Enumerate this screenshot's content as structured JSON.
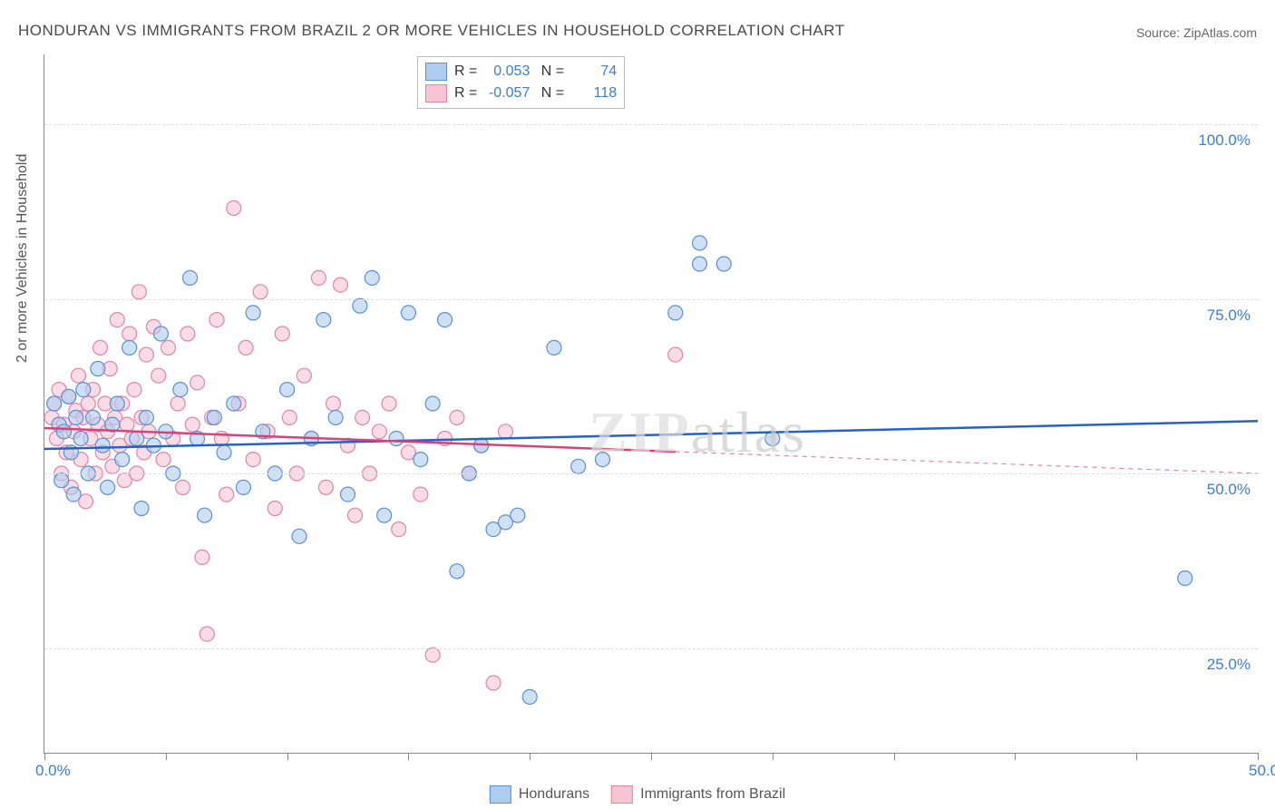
{
  "title": "HONDURAN VS IMMIGRANTS FROM BRAZIL 2 OR MORE VEHICLES IN HOUSEHOLD CORRELATION CHART",
  "source": "Source: ZipAtlas.com",
  "y_axis_title": "2 or more Vehicles in Household",
  "watermark": "ZIPatlas",
  "chart": {
    "type": "scatter",
    "xlim": [
      0,
      50
    ],
    "ylim": [
      10,
      110
    ],
    "x_ticks": [
      0,
      5,
      10,
      15,
      20,
      25,
      30,
      35,
      40,
      45,
      50
    ],
    "x_tick_labels": {
      "0": "0.0%",
      "50": "50.0%"
    },
    "y_ticks": [
      25,
      50,
      75,
      100
    ],
    "y_tick_labels": [
      "25.0%",
      "50.0%",
      "75.0%",
      "100.0%"
    ],
    "background_color": "#ffffff",
    "grid_color": "#dddddd",
    "axis_color": "#888888",
    "label_color": "#3b7dd8",
    "marker_radius": 8,
    "marker_stroke_width": 1.2,
    "marker_fill_opacity": 0.25,
    "trend_line_width": 2.5,
    "series": [
      {
        "name": "Hondurans",
        "color_fill": "#aecbf0",
        "color_stroke": "#5a8fd6",
        "trend_color": "#2463c4",
        "R": "0.053",
        "N": "74",
        "trend": {
          "x0": 0,
          "y0": 53.5,
          "x1": 50,
          "y1": 57.5,
          "dashed_from": null
        },
        "points": [
          [
            0.4,
            60
          ],
          [
            0.6,
            57
          ],
          [
            0.7,
            49
          ],
          [
            0.8,
            56
          ],
          [
            1.0,
            61
          ],
          [
            1.1,
            53
          ],
          [
            1.2,
            47
          ],
          [
            1.3,
            58
          ],
          [
            1.5,
            55
          ],
          [
            1.6,
            62
          ],
          [
            1.8,
            50
          ],
          [
            2.0,
            58
          ],
          [
            2.2,
            65
          ],
          [
            2.4,
            54
          ],
          [
            2.6,
            48
          ],
          [
            2.8,
            57
          ],
          [
            3.0,
            60
          ],
          [
            3.2,
            52
          ],
          [
            3.5,
            68
          ],
          [
            3.8,
            55
          ],
          [
            4.0,
            45
          ],
          [
            4.2,
            58
          ],
          [
            4.5,
            54
          ],
          [
            4.8,
            70
          ],
          [
            5.0,
            56
          ],
          [
            5.3,
            50
          ],
          [
            5.6,
            62
          ],
          [
            6.0,
            78
          ],
          [
            6.3,
            55
          ],
          [
            6.6,
            44
          ],
          [
            7.0,
            58
          ],
          [
            7.4,
            53
          ],
          [
            7.8,
            60
          ],
          [
            8.2,
            48
          ],
          [
            8.6,
            73
          ],
          [
            9.0,
            56
          ],
          [
            9.5,
            50
          ],
          [
            10.0,
            62
          ],
          [
            10.5,
            41
          ],
          [
            11.0,
            55
          ],
          [
            11.5,
            72
          ],
          [
            12.0,
            58
          ],
          [
            12.5,
            47
          ],
          [
            13.0,
            74
          ],
          [
            13.5,
            78
          ],
          [
            14.0,
            44
          ],
          [
            14.5,
            55
          ],
          [
            15.0,
            73
          ],
          [
            15.5,
            52
          ],
          [
            16.0,
            60
          ],
          [
            16.5,
            72
          ],
          [
            17.0,
            36
          ],
          [
            17.5,
            50
          ],
          [
            18.0,
            54
          ],
          [
            18.5,
            42
          ],
          [
            19.0,
            43
          ],
          [
            19.5,
            44
          ],
          [
            20.0,
            18
          ],
          [
            21.0,
            68
          ],
          [
            22.0,
            51
          ],
          [
            23.0,
            52
          ],
          [
            26.0,
            73
          ],
          [
            27.0,
            80
          ],
          [
            27.0,
            83
          ],
          [
            28.0,
            80
          ],
          [
            30.0,
            55
          ],
          [
            47.0,
            35
          ]
        ]
      },
      {
        "name": "Immigrants from Brazil",
        "color_fill": "#f5c5d3",
        "color_stroke": "#e384a3",
        "trend_color": "#d6437a",
        "R": "-0.057",
        "N": "118",
        "trend": {
          "x0": 0,
          "y0": 56.5,
          "x1": 50,
          "y1": 50.0,
          "dashed_from": 26
        },
        "points": [
          [
            0.3,
            58
          ],
          [
            0.4,
            60
          ],
          [
            0.5,
            55
          ],
          [
            0.6,
            62
          ],
          [
            0.7,
            50
          ],
          [
            0.8,
            57
          ],
          [
            0.9,
            53
          ],
          [
            1.0,
            61
          ],
          [
            1.1,
            48
          ],
          [
            1.2,
            56
          ],
          [
            1.3,
            59
          ],
          [
            1.4,
            64
          ],
          [
            1.5,
            52
          ],
          [
            1.6,
            58
          ],
          [
            1.7,
            46
          ],
          [
            1.8,
            60
          ],
          [
            1.9,
            55
          ],
          [
            2.0,
            62
          ],
          [
            2.1,
            50
          ],
          [
            2.2,
            57
          ],
          [
            2.3,
            68
          ],
          [
            2.4,
            53
          ],
          [
            2.5,
            60
          ],
          [
            2.6,
            56
          ],
          [
            2.7,
            65
          ],
          [
            2.8,
            51
          ],
          [
            2.9,
            58
          ],
          [
            3.0,
            72
          ],
          [
            3.1,
            54
          ],
          [
            3.2,
            60
          ],
          [
            3.3,
            49
          ],
          [
            3.4,
            57
          ],
          [
            3.5,
            70
          ],
          [
            3.6,
            55
          ],
          [
            3.7,
            62
          ],
          [
            3.8,
            50
          ],
          [
            3.9,
            76
          ],
          [
            4.0,
            58
          ],
          [
            4.1,
            53
          ],
          [
            4.2,
            67
          ],
          [
            4.3,
            56
          ],
          [
            4.5,
            71
          ],
          [
            4.7,
            64
          ],
          [
            4.9,
            52
          ],
          [
            5.1,
            68
          ],
          [
            5.3,
            55
          ],
          [
            5.5,
            60
          ],
          [
            5.7,
            48
          ],
          [
            5.9,
            70
          ],
          [
            6.1,
            57
          ],
          [
            6.3,
            63
          ],
          [
            6.5,
            38
          ],
          [
            6.7,
            27
          ],
          [
            6.9,
            58
          ],
          [
            7.1,
            72
          ],
          [
            7.3,
            55
          ],
          [
            7.5,
            47
          ],
          [
            7.8,
            88
          ],
          [
            8.0,
            60
          ],
          [
            8.3,
            68
          ],
          [
            8.6,
            52
          ],
          [
            8.9,
            76
          ],
          [
            9.2,
            56
          ],
          [
            9.5,
            45
          ],
          [
            9.8,
            70
          ],
          [
            10.1,
            58
          ],
          [
            10.4,
            50
          ],
          [
            10.7,
            64
          ],
          [
            11.0,
            55
          ],
          [
            11.3,
            78
          ],
          [
            11.6,
            48
          ],
          [
            11.9,
            60
          ],
          [
            12.2,
            77
          ],
          [
            12.5,
            54
          ],
          [
            12.8,
            44
          ],
          [
            13.1,
            58
          ],
          [
            13.4,
            50
          ],
          [
            13.8,
            56
          ],
          [
            14.2,
            60
          ],
          [
            14.6,
            42
          ],
          [
            15.0,
            53
          ],
          [
            15.5,
            47
          ],
          [
            16.0,
            24
          ],
          [
            16.5,
            55
          ],
          [
            17.0,
            58
          ],
          [
            17.5,
            50
          ],
          [
            18.0,
            54
          ],
          [
            18.5,
            20
          ],
          [
            19.0,
            56
          ],
          [
            26.0,
            67
          ]
        ]
      }
    ]
  },
  "legend": {
    "series1_label": "Hondurans",
    "series2_label": "Immigrants from Brazil"
  }
}
